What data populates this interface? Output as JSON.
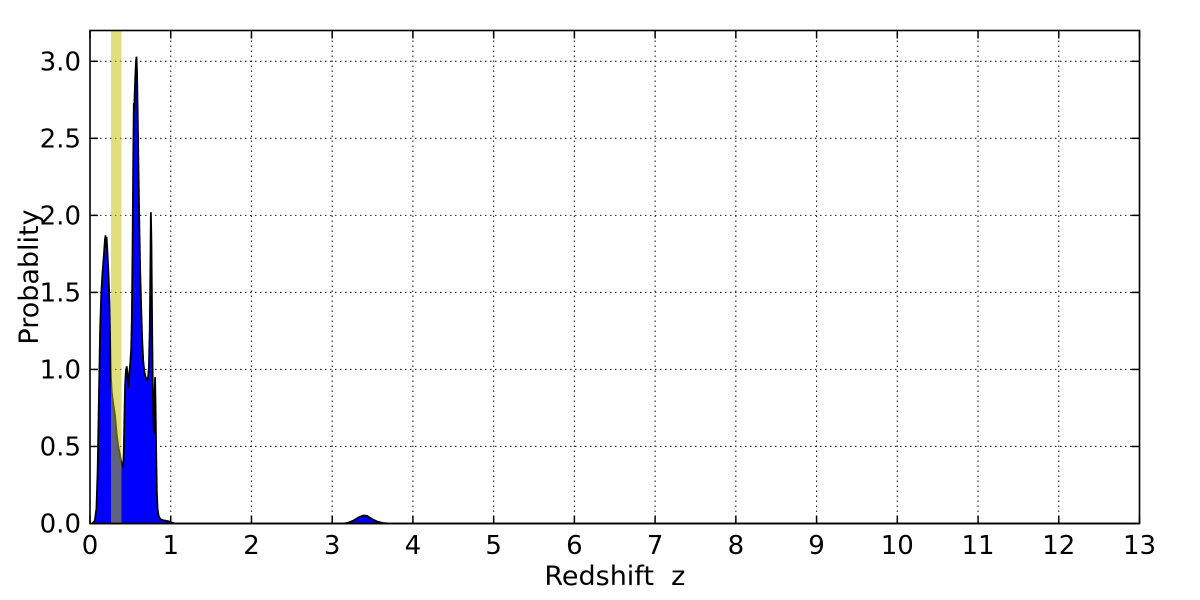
{
  "figure": {
    "background": "#ffffff",
    "title": ""
  },
  "chart_data": {
    "type": "area",
    "title": "",
    "xlabel": "Redshift  z",
    "ylabel": "Probablity",
    "xlim": [
      0,
      13
    ],
    "ylim": [
      0,
      3.2
    ],
    "grid": "dotted",
    "grid_color": "#222222",
    "legend": "none",
    "x_ticks": [
      0,
      1,
      2,
      3,
      4,
      5,
      6,
      7,
      8,
      9,
      10,
      11,
      12,
      13
    ],
    "x_tick_labels": [
      "0",
      "1",
      "2",
      "3",
      "4",
      "5",
      "6",
      "7",
      "8",
      "9",
      "10",
      "11",
      "12",
      "13"
    ],
    "y_ticks": [
      0,
      0.5,
      1.0,
      1.5,
      2.0,
      2.5,
      3.0
    ],
    "y_tick_labels": [
      "0.0",
      "0.5",
      "1.0",
      "1.5",
      "2.0",
      "2.5",
      "3.0"
    ],
    "series": [
      {
        "name": "redshift-probability-density",
        "type": "filled-line",
        "fill_color": "#0000ff",
        "edge_color": "#000000",
        "points": [
          [
            0.03,
            0
          ],
          [
            0.06,
            0.02
          ],
          [
            0.08,
            0.1
          ],
          [
            0.095,
            0.35
          ],
          [
            0.11,
            0.8
          ],
          [
            0.125,
            1.25
          ],
          [
            0.14,
            1.5
          ],
          [
            0.155,
            1.63
          ],
          [
            0.17,
            1.73
          ],
          [
            0.185,
            1.84
          ],
          [
            0.193,
            1.87
          ],
          [
            0.199,
            1.79
          ],
          [
            0.205,
            1.86
          ],
          [
            0.212,
            1.8
          ],
          [
            0.222,
            1.7
          ],
          [
            0.232,
            1.58
          ],
          [
            0.242,
            1.42
          ],
          [
            0.25,
            1.18
          ],
          [
            0.258,
            0.96
          ],
          [
            0.27,
            0.85
          ],
          [
            0.29,
            0.77
          ],
          [
            0.31,
            0.7
          ],
          [
            0.33,
            0.58
          ],
          [
            0.35,
            0.5
          ],
          [
            0.37,
            0.45
          ],
          [
            0.385,
            0.405
          ],
          [
            0.4,
            0.378
          ],
          [
            0.41,
            0.37
          ],
          [
            0.418,
            0.46
          ],
          [
            0.426,
            0.68
          ],
          [
            0.435,
            0.9
          ],
          [
            0.445,
            0.99
          ],
          [
            0.455,
            1.02
          ],
          [
            0.465,
            0.97
          ],
          [
            0.473,
            0.88
          ],
          [
            0.482,
            0.92
          ],
          [
            0.49,
            0.99
          ],
          [
            0.5,
            1.05
          ],
          [
            0.51,
            1.13
          ],
          [
            0.518,
            1.32
          ],
          [
            0.527,
            1.78
          ],
          [
            0.536,
            2.38
          ],
          [
            0.543,
            2.73
          ],
          [
            0.548,
            2.68
          ],
          [
            0.553,
            2.78
          ],
          [
            0.561,
            2.9
          ],
          [
            0.57,
            3.0
          ],
          [
            0.576,
            3.03
          ],
          [
            0.583,
            2.92
          ],
          [
            0.592,
            2.62
          ],
          [
            0.601,
            2.28
          ],
          [
            0.611,
            1.94
          ],
          [
            0.621,
            1.66
          ],
          [
            0.633,
            1.42
          ],
          [
            0.646,
            1.2
          ],
          [
            0.659,
            1.06
          ],
          [
            0.672,
            0.99
          ],
          [
            0.686,
            0.955
          ],
          [
            0.7,
            0.94
          ],
          [
            0.71,
            0.93
          ],
          [
            0.72,
            0.95
          ],
          [
            0.73,
            1.02
          ],
          [
            0.74,
            1.26
          ],
          [
            0.748,
            1.66
          ],
          [
            0.754,
            2.02
          ],
          [
            0.761,
            1.82
          ],
          [
            0.769,
            1.32
          ],
          [
            0.777,
            0.92
          ],
          [
            0.785,
            0.68
          ],
          [
            0.792,
            0.58
          ],
          [
            0.8,
            0.83
          ],
          [
            0.806,
            0.95
          ],
          [
            0.812,
            0.77
          ],
          [
            0.82,
            0.45
          ],
          [
            0.828,
            0.2
          ],
          [
            0.838,
            0.09
          ],
          [
            0.85,
            0.05
          ],
          [
            0.87,
            0.03
          ],
          [
            0.9,
            0.022
          ],
          [
            0.94,
            0.018
          ],
          [
            0.99,
            0.012
          ],
          [
            1.02,
            0.005
          ],
          [
            1.05,
            0
          ],
          [
            3.14,
            0
          ],
          [
            3.2,
            0.005
          ],
          [
            3.26,
            0.018
          ],
          [
            3.32,
            0.038
          ],
          [
            3.38,
            0.052
          ],
          [
            3.43,
            0.05
          ],
          [
            3.49,
            0.03
          ],
          [
            3.56,
            0.012
          ],
          [
            3.63,
            0.003
          ],
          [
            3.7,
            0
          ],
          [
            13,
            0
          ]
        ]
      }
    ],
    "annotations": [
      {
        "name": "reference-redshift-band",
        "type": "vspan",
        "x0": 0.26,
        "x1": 0.39,
        "color": "#bfbf00",
        "alpha": 0.5
      }
    ]
  }
}
